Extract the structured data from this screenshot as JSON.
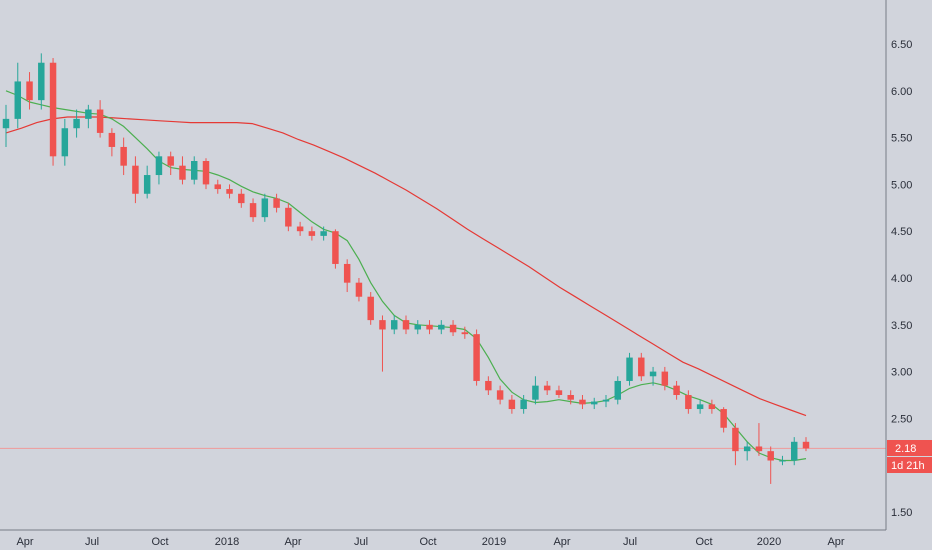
{
  "chart_data": {
    "type": "candlestick",
    "title": "",
    "xlabel": "",
    "ylabel": "",
    "ylim": [
      1.4,
      6.95
    ],
    "grid": false,
    "x_tick_labels": [
      "Apr",
      "Jul",
      "Oct",
      "2018",
      "Apr",
      "Jul",
      "Oct",
      "2019",
      "Apr",
      "Jul",
      "Oct",
      "2020",
      "Apr"
    ],
    "y_tick_labels": [
      "6.50",
      "6.00",
      "5.50",
      "5.00",
      "4.50",
      "4.00",
      "3.50",
      "3.00",
      "2.50",
      "1.50"
    ],
    "y_ticks": [
      6.5,
      6.0,
      5.5,
      5.0,
      4.5,
      4.0,
      3.5,
      3.0,
      2.5,
      1.5
    ],
    "last_price": 2.18,
    "last_price_label": "2.18",
    "countdown_label": "1d 21h",
    "colors": {
      "up": "#26a69a",
      "down": "#ef5350",
      "ma_fast": "#4caf50",
      "ma_slow": "#e53935",
      "price_line": "#ef9a9a",
      "background": "#d1d4dc",
      "axis_line": "#787b86",
      "badge": "#ef5350"
    },
    "series": [
      {
        "name": "",
        "kind": "moving-average-fast",
        "color": "#4caf50",
        "values": [
          6.0,
          5.95,
          5.88,
          5.85,
          5.82,
          5.8,
          5.78,
          5.76,
          5.75,
          5.7,
          5.62,
          5.5,
          5.38,
          5.25,
          5.18,
          5.16,
          5.15,
          5.14,
          5.1,
          5.05,
          4.98,
          4.92,
          4.88,
          4.85,
          4.8,
          4.7,
          4.6,
          4.52,
          4.48,
          4.4,
          4.2,
          3.95,
          3.75,
          3.6,
          3.52,
          3.5,
          3.49,
          3.48,
          3.47,
          3.45,
          3.35,
          3.15,
          2.92,
          2.78,
          2.7,
          2.67,
          2.68,
          2.7,
          2.68,
          2.66,
          2.67,
          2.69,
          2.75,
          2.82,
          2.86,
          2.88,
          2.85,
          2.8,
          2.74,
          2.7,
          2.65,
          2.55,
          2.4,
          2.25,
          2.13,
          2.08,
          2.05,
          2.05,
          2.07
        ]
      },
      {
        "name": "",
        "kind": "moving-average-slow",
        "color": "#e53935",
        "values": [
          5.55,
          5.6,
          5.66,
          5.7,
          5.72,
          5.72,
          5.72,
          5.71,
          5.7,
          5.69,
          5.68,
          5.67,
          5.66,
          5.66,
          5.66,
          5.66,
          5.65,
          5.6,
          5.55,
          5.48,
          5.42,
          5.35,
          5.28,
          5.2,
          5.12,
          5.03,
          4.94,
          4.84,
          4.74,
          4.63,
          4.52,
          4.42,
          4.32,
          4.22,
          4.12,
          4.01,
          3.9,
          3.8,
          3.7,
          3.6,
          3.5,
          3.4,
          3.3,
          3.2,
          3.1,
          3.03,
          2.95,
          2.87,
          2.79,
          2.71,
          2.65,
          2.59,
          2.53
        ]
      },
      {
        "name": "",
        "kind": "ohlc-weekly",
        "values": [
          [
            5.6,
            5.85,
            5.4,
            5.7
          ],
          [
            5.7,
            6.3,
            5.6,
            6.1
          ],
          [
            6.1,
            6.2,
            5.8,
            5.9
          ],
          [
            5.9,
            6.4,
            5.8,
            6.3
          ],
          [
            6.3,
            6.35,
            5.2,
            5.3
          ],
          [
            5.3,
            5.7,
            5.2,
            5.6
          ],
          [
            5.6,
            5.8,
            5.5,
            5.7
          ],
          [
            5.7,
            5.85,
            5.6,
            5.8
          ],
          [
            5.8,
            5.9,
            5.5,
            5.55
          ],
          [
            5.55,
            5.6,
            5.3,
            5.4
          ],
          [
            5.4,
            5.5,
            5.1,
            5.2
          ],
          [
            5.2,
            5.3,
            4.8,
            4.9
          ],
          [
            4.9,
            5.2,
            4.85,
            5.1
          ],
          [
            5.1,
            5.35,
            5.0,
            5.3
          ],
          [
            5.3,
            5.35,
            5.1,
            5.2
          ],
          [
            5.2,
            5.3,
            5.0,
            5.05
          ],
          [
            5.05,
            5.3,
            5.0,
            5.25
          ],
          [
            5.25,
            5.28,
            4.95,
            5.0
          ],
          [
            5.0,
            5.05,
            4.9,
            4.95
          ],
          [
            4.95,
            5.0,
            4.85,
            4.9
          ],
          [
            4.9,
            4.95,
            4.75,
            4.8
          ],
          [
            4.8,
            4.85,
            4.6,
            4.65
          ],
          [
            4.65,
            4.9,
            4.6,
            4.85
          ],
          [
            4.85,
            4.9,
            4.7,
            4.75
          ],
          [
            4.75,
            4.8,
            4.5,
            4.55
          ],
          [
            4.55,
            4.6,
            4.45,
            4.5
          ],
          [
            4.5,
            4.55,
            4.4,
            4.45
          ],
          [
            4.45,
            4.55,
            4.4,
            4.5
          ],
          [
            4.5,
            4.52,
            4.1,
            4.15
          ],
          [
            4.15,
            4.2,
            3.85,
            3.95
          ],
          [
            3.95,
            4.0,
            3.75,
            3.8
          ],
          [
            3.8,
            3.85,
            3.5,
            3.55
          ],
          [
            3.55,
            3.6,
            3.0,
            3.45
          ],
          [
            3.45,
            3.6,
            3.4,
            3.55
          ],
          [
            3.55,
            3.6,
            3.4,
            3.45
          ],
          [
            3.45,
            3.55,
            3.4,
            3.5
          ],
          [
            3.5,
            3.55,
            3.4,
            3.45
          ],
          [
            3.45,
            3.55,
            3.4,
            3.5
          ],
          [
            3.5,
            3.55,
            3.38,
            3.42
          ],
          [
            3.42,
            3.48,
            3.35,
            3.4
          ],
          [
            3.4,
            3.45,
            2.85,
            2.9
          ],
          [
            2.9,
            2.95,
            2.75,
            2.8
          ],
          [
            2.8,
            2.85,
            2.65,
            2.7
          ],
          [
            2.7,
            2.75,
            2.55,
            2.6
          ],
          [
            2.6,
            2.75,
            2.55,
            2.7
          ],
          [
            2.7,
            2.95,
            2.65,
            2.85
          ],
          [
            2.85,
            2.9,
            2.75,
            2.8
          ],
          [
            2.8,
            2.85,
            2.72,
            2.75
          ],
          [
            2.75,
            2.8,
            2.65,
            2.7
          ],
          [
            2.7,
            2.75,
            2.6,
            2.65
          ],
          [
            2.65,
            2.72,
            2.6,
            2.68
          ],
          [
            2.68,
            2.75,
            2.62,
            2.7
          ],
          [
            2.7,
            2.95,
            2.65,
            2.9
          ],
          [
            2.9,
            3.2,
            2.85,
            3.15
          ],
          [
            3.15,
            3.2,
            2.9,
            2.95
          ],
          [
            2.95,
            3.05,
            2.85,
            3.0
          ],
          [
            3.0,
            3.05,
            2.8,
            2.85
          ],
          [
            2.85,
            2.9,
            2.7,
            2.75
          ],
          [
            2.75,
            2.8,
            2.55,
            2.6
          ],
          [
            2.6,
            2.7,
            2.55,
            2.65
          ],
          [
            2.65,
            2.7,
            2.55,
            2.6
          ],
          [
            2.6,
            2.62,
            2.35,
            2.4
          ],
          [
            2.4,
            2.45,
            2.0,
            2.15
          ],
          [
            2.15,
            2.25,
            2.05,
            2.2
          ],
          [
            2.2,
            2.45,
            2.1,
            2.15
          ],
          [
            2.15,
            2.2,
            1.8,
            2.05
          ],
          [
            2.05,
            2.1,
            2.0,
            2.05
          ],
          [
            2.05,
            2.3,
            2.0,
            2.25
          ],
          [
            2.25,
            2.3,
            2.15,
            2.18
          ]
        ]
      }
    ]
  }
}
